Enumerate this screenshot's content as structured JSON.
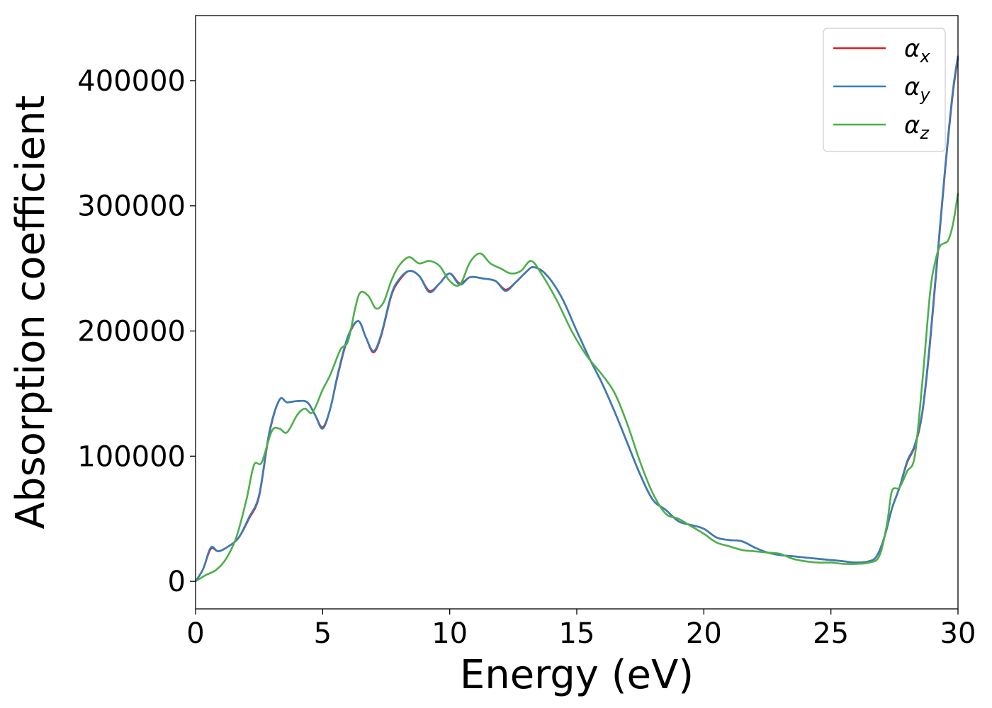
{
  "chart_data": {
    "type": "line",
    "xlabel": "Energy (eV)",
    "ylabel": "Absorption coefficient",
    "xlim": [
      0,
      30
    ],
    "ylim": [
      -22000,
      452000
    ],
    "grid": false,
    "legend_position": "top-right",
    "x_ticks": [
      "0",
      "5",
      "10",
      "15",
      "20",
      "25",
      "30"
    ],
    "y_ticks": [
      "0",
      "100000",
      "200000",
      "300000",
      "400000"
    ],
    "x_tick_values": [
      0,
      5,
      10,
      15,
      20,
      25,
      30
    ],
    "y_tick_values": [
      0,
      100000,
      200000,
      300000,
      400000
    ],
    "series": [
      {
        "name": "α",
        "subscript": "x",
        "color": "#e41a1c",
        "x": [
          0,
          0.3,
          0.6,
          0.9,
          1.3,
          1.7,
          2.1,
          2.5,
          2.9,
          3.3,
          3.6,
          4.0,
          4.4,
          4.7,
          5.0,
          5.3,
          5.6,
          6.0,
          6.4,
          6.7,
          7.0,
          7.3,
          7.7,
          8.0,
          8.4,
          8.8,
          9.2,
          9.6,
          10.0,
          10.4,
          10.8,
          11.3,
          11.8,
          12.2,
          12.6,
          13.0,
          13.3,
          13.8,
          14.4,
          15.0,
          15.5,
          16.0,
          16.5,
          17.0,
          17.5,
          18.0,
          18.5,
          19.0,
          19.5,
          20.0,
          20.5,
          21.0,
          21.5,
          22.0,
          22.5,
          23.0,
          23.5,
          24.0,
          24.5,
          25.0,
          25.5,
          26.0,
          26.5,
          26.8,
          27.1,
          27.4,
          27.7,
          28.0,
          28.3,
          28.6,
          28.9,
          29.2,
          29.5,
          29.8,
          30.0
        ],
        "y": [
          0,
          10000,
          26000,
          24000,
          28000,
          35000,
          50000,
          68000,
          118000,
          145000,
          143000,
          144000,
          143000,
          133000,
          123000,
          138000,
          165000,
          195000,
          208000,
          195000,
          183000,
          196000,
          228000,
          240000,
          248000,
          244000,
          232000,
          238000,
          246000,
          238000,
          243000,
          242000,
          240000,
          233000,
          239000,
          247000,
          251000,
          245000,
          227000,
          200000,
          178000,
          158000,
          135000,
          110000,
          85000,
          65000,
          57000,
          48000,
          45000,
          42000,
          35000,
          33000,
          32000,
          27000,
          23000,
          21000,
          20000,
          19000,
          18000,
          17000,
          16000,
          15000,
          16000,
          20000,
          35000,
          58000,
          75000,
          95000,
          108000,
          135000,
          190000,
          260000,
          330000,
          390000,
          418000
        ]
      },
      {
        "name": "α",
        "subscript": "y",
        "color": "#377eb8",
        "x": [
          0,
          0.3,
          0.6,
          0.9,
          1.3,
          1.7,
          2.1,
          2.5,
          2.9,
          3.3,
          3.6,
          4.0,
          4.4,
          4.7,
          5.0,
          5.3,
          5.6,
          6.0,
          6.4,
          6.7,
          7.0,
          7.3,
          7.7,
          8.0,
          8.4,
          8.8,
          9.2,
          9.6,
          10.0,
          10.4,
          10.8,
          11.3,
          11.8,
          12.2,
          12.6,
          13.0,
          13.3,
          13.8,
          14.4,
          15.0,
          15.5,
          16.0,
          16.5,
          17.0,
          17.5,
          18.0,
          18.5,
          19.0,
          19.5,
          20.0,
          20.5,
          21.0,
          21.5,
          22.0,
          22.5,
          23.0,
          23.5,
          24.0,
          24.5,
          25.0,
          25.5,
          26.0,
          26.5,
          26.8,
          27.1,
          27.4,
          27.7,
          28.0,
          28.3,
          28.6,
          28.9,
          29.2,
          29.5,
          29.8,
          30.0
        ],
        "y": [
          0,
          10000,
          27000,
          24000,
          28000,
          35000,
          51000,
          69000,
          119000,
          145000,
          143000,
          144000,
          143000,
          133000,
          122000,
          138000,
          166000,
          196000,
          208000,
          195000,
          184000,
          197000,
          229000,
          241000,
          248000,
          244000,
          231000,
          238000,
          246000,
          237000,
          243000,
          242000,
          240000,
          232000,
          239000,
          247000,
          251000,
          245000,
          227000,
          200000,
          178000,
          158000,
          135000,
          110000,
          85000,
          65000,
          57000,
          48000,
          45000,
          42000,
          35000,
          33000,
          32000,
          27000,
          23000,
          21000,
          20000,
          19000,
          18000,
          17000,
          16000,
          15000,
          16000,
          20000,
          35000,
          58000,
          75000,
          96000,
          109000,
          136000,
          192000,
          262000,
          332000,
          392000,
          420000
        ]
      },
      {
        "name": "α",
        "subscript": "z",
        "color": "#4daf4a",
        "x": [
          0,
          0.4,
          0.8,
          1.2,
          1.6,
          2.0,
          2.3,
          2.6,
          3.0,
          3.3,
          3.6,
          4.0,
          4.3,
          4.6,
          5.0,
          5.3,
          5.7,
          6.0,
          6.3,
          6.5,
          6.8,
          7.1,
          7.4,
          7.7,
          8.0,
          8.4,
          8.8,
          9.2,
          9.6,
          10.0,
          10.4,
          10.8,
          11.2,
          11.6,
          12.0,
          12.4,
          12.8,
          13.2,
          13.6,
          14.2,
          14.8,
          15.4,
          16.0,
          16.5,
          17.0,
          17.5,
          18.0,
          18.5,
          19.0,
          19.5,
          20.0,
          20.5,
          21.0,
          21.5,
          22.0,
          22.5,
          23.0,
          23.5,
          24.0,
          24.5,
          25.0,
          25.5,
          26.0,
          26.5,
          26.9,
          27.2,
          27.4,
          27.7,
          28.0,
          28.3,
          28.6,
          28.9,
          29.1,
          29.3,
          29.6,
          29.8,
          30.0
        ],
        "y": [
          0,
          5000,
          9000,
          18000,
          35000,
          65000,
          93000,
          95000,
          120000,
          122000,
          119000,
          133000,
          138000,
          135000,
          153000,
          165000,
          185000,
          192000,
          220000,
          231000,
          228000,
          218000,
          223000,
          240000,
          252000,
          259000,
          254000,
          256000,
          252000,
          240000,
          237000,
          255000,
          262000,
          254000,
          250000,
          246000,
          248000,
          256000,
          246000,
          225000,
          200000,
          180000,
          165000,
          150000,
          125000,
          95000,
          70000,
          54000,
          50000,
          44000,
          38000,
          31000,
          28000,
          25000,
          24000,
          23000,
          22000,
          18000,
          16000,
          15000,
          15000,
          14000,
          14000,
          15000,
          20000,
          45000,
          72000,
          75000,
          88000,
          100000,
          160000,
          230000,
          255000,
          268000,
          272000,
          285000,
          310000
        ]
      }
    ]
  }
}
